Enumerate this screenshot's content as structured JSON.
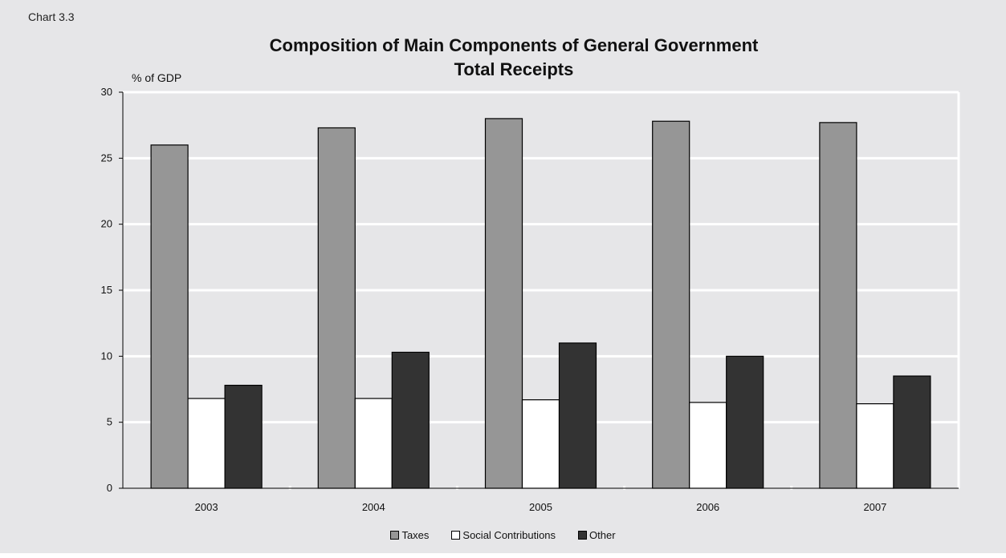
{
  "chart_label": "Chart  3.3",
  "chart_data": {
    "type": "bar",
    "title_lines": [
      "Composition of Main Components of General Government",
      "Total Receipts"
    ],
    "ylabel": "% of GDP",
    "categories": [
      "2003",
      "2004",
      "2005",
      "2006",
      "2007"
    ],
    "ylim": [
      0,
      30
    ],
    "yticks": [
      0,
      5,
      10,
      15,
      20,
      25,
      30
    ],
    "grid": true,
    "legend_position": "bottom-center",
    "series": [
      {
        "name": "Taxes",
        "color": "#969696",
        "values": [
          26.0,
          27.3,
          28.0,
          27.8,
          27.7
        ]
      },
      {
        "name": "Social Contributions",
        "color": "#ffffff",
        "values": [
          6.8,
          6.8,
          6.7,
          6.5,
          6.4
        ]
      },
      {
        "name": "Other",
        "color": "#333333",
        "values": [
          7.8,
          10.3,
          11.0,
          10.0,
          8.5
        ]
      }
    ]
  }
}
